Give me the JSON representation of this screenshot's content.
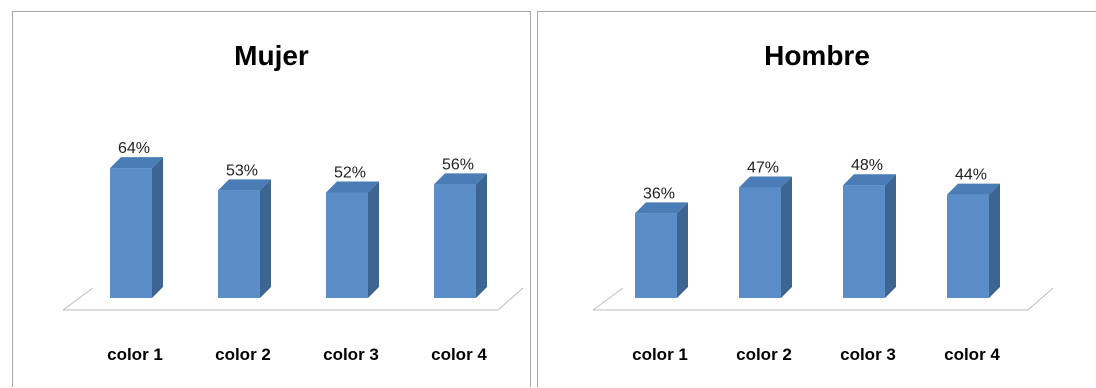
{
  "colors": {
    "bar_front": "#5b8ec9",
    "bar_side": "#3d6591",
    "bar_top": "#4a7cb5",
    "floor": "#bdbdbd"
  },
  "chart_data": [
    {
      "type": "bar",
      "title": "Mujer",
      "categories": [
        "color 1",
        "color 2",
        "color 3",
        "color 4"
      ],
      "values": [
        64,
        53,
        52,
        56
      ],
      "value_labels": [
        "64%",
        "53%",
        "52%",
        "56%"
      ],
      "ylim": [
        0,
        100
      ],
      "grid": false,
      "legend": "none"
    },
    {
      "type": "bar",
      "title": "Hombre",
      "categories": [
        "color 1",
        "color 2",
        "color 3",
        "color 4"
      ],
      "values": [
        36,
        47,
        48,
        44
      ],
      "value_labels": [
        "36%",
        "47%",
        "48%",
        "44%"
      ],
      "ylim": [
        0,
        100
      ],
      "grid": false,
      "legend": "none"
    }
  ]
}
